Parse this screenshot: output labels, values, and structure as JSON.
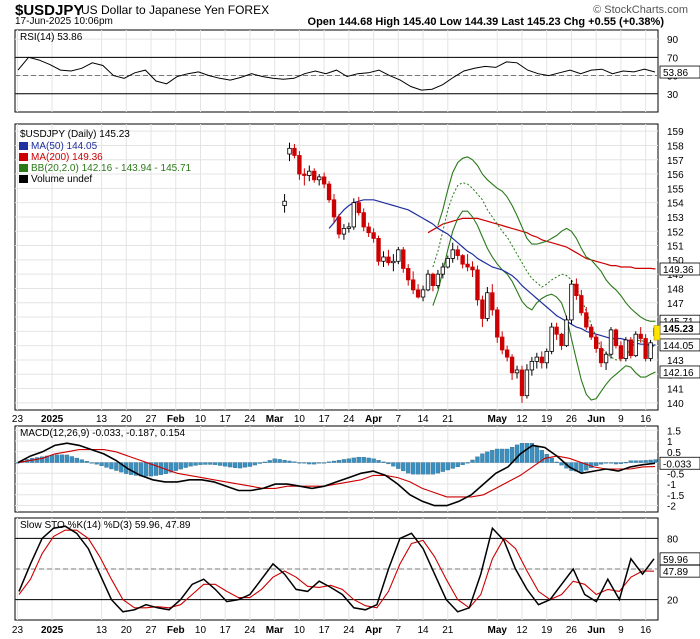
{
  "header": {
    "symbol": "$USDJPY",
    "name": "US Dollar to Japanese Yen FOREX",
    "datetime": "17-Jun-2025 10:06pm",
    "ohlc_text": "Open 144.68  High 145.40  Low 144.39  Last 145.23  Chg +0.55 (+0.38%)",
    "watermark": "© StockCharts.com"
  },
  "colors": {
    "up": "#000000",
    "down": "#cc0000",
    "doji": "#000000",
    "ma50": "#1f2fa0",
    "ma200": "#cc0000",
    "bb": "#2a7a1a",
    "bb_mid": "#2a7a1a",
    "histogram": "#3b8fbf",
    "macd": "#000000",
    "signal": "#cc0000",
    "stoch_k": "#000000",
    "stoch_d": "#cc0000",
    "rsi": "#000000",
    "grid": "#e4e4e4",
    "border": "#000000"
  },
  "chart_data": [
    {
      "type": "line",
      "panel": "rsi",
      "label": "RSI(14) 53.86",
      "ylim": [
        10,
        100
      ],
      "yticks": [
        90,
        70,
        50,
        30
      ],
      "reference_lines": [
        70,
        30
      ],
      "last_value_label": "53.86",
      "x_days": [
        0,
        3,
        6,
        9,
        12,
        15,
        18,
        21,
        24,
        27,
        30,
        33,
        36,
        39,
        42,
        45,
        48,
        51,
        54,
        57,
        60,
        63,
        66,
        69,
        72,
        75,
        78,
        81,
        84,
        87,
        90,
        93,
        96,
        99,
        102,
        105,
        108,
        111,
        114,
        117,
        120,
        123,
        126,
        129,
        132,
        135,
        138,
        141,
        144,
        147,
        150,
        153,
        156,
        159,
        162,
        165,
        168,
        171,
        174,
        177,
        180
      ],
      "values": [
        56,
        70,
        67,
        62,
        56,
        55,
        58,
        64,
        61,
        50,
        47,
        53,
        56,
        44,
        41,
        49,
        52,
        54,
        50,
        47,
        45,
        48,
        52,
        49,
        47,
        46,
        47,
        52,
        55,
        52,
        56,
        49,
        52,
        53,
        56,
        50,
        45,
        38,
        34,
        35,
        40,
        48,
        55,
        58,
        60,
        59,
        65,
        64,
        56,
        52,
        50,
        53,
        56,
        52,
        56,
        57,
        52,
        55,
        54,
        57,
        53.86
      ]
    },
    {
      "type": "candlestick",
      "panel": "price",
      "label": "$USDJPY (Daily) 145.23",
      "legend": [
        {
          "name": "MA(50) 144.05",
          "color_key": "ma50"
        },
        {
          "name": "MA(200) 149.36",
          "color_key": "ma200"
        },
        {
          "name": "BB(20,2.0) 142.16 - 143.94 - 145.71",
          "color_key": "bb"
        },
        {
          "name": "Volume undef",
          "color_key": "up"
        }
      ],
      "ylim": [
        139.5,
        159.5
      ],
      "yticks": [
        159,
        158,
        157,
        156,
        155,
        154,
        153,
        152,
        151,
        150,
        149,
        148,
        147,
        146,
        145,
        144,
        143,
        142,
        141,
        140
      ],
      "hidden_ytick_labels": [
        145,
        146
      ],
      "last_value_tags": [
        {
          "text": "149.36",
          "value": 149.36,
          "bold": false
        },
        {
          "text": "145.71",
          "value": 145.71,
          "bold": false
        },
        {
          "text": "145.23",
          "value": 145.23,
          "bold": true
        },
        {
          "text": "144.05",
          "value": 144.05,
          "bold": false
        },
        {
          "text": "142.16",
          "value": 142.16,
          "bold": false
        }
      ],
      "x_label_days": [
        0,
        3,
        6,
        11,
        14,
        17,
        20,
        25,
        28,
        31,
        34,
        39,
        42,
        45,
        48,
        53,
        56,
        59,
        62,
        67,
        70,
        73,
        76,
        81,
        84,
        87,
        90,
        95,
        98,
        101,
        104,
        109,
        112,
        115,
        118,
        121
      ],
      "x_labels": [
        "23",
        "2025",
        "13",
        "20",
        "27",
        "Feb",
        "10",
        "17",
        "24",
        "Mar",
        "10",
        "17",
        "24",
        "Apr",
        "7",
        "14",
        "21",
        "May",
        "12",
        "19",
        "26",
        "Jun",
        "9",
        "16"
      ],
      "x_label_positions": [
        0,
        7,
        17,
        22,
        27,
        32,
        37,
        42,
        47,
        52,
        57,
        62,
        67,
        72,
        77,
        82,
        87,
        97,
        102,
        107,
        112,
        117,
        122,
        127
      ],
      "candles": [
        [
          153.8,
          154.6,
          153.3,
          154.1
        ],
        [
          157.4,
          158.2,
          156.9,
          157.8
        ],
        [
          157.8,
          158.1,
          157.1,
          157.3
        ],
        [
          157.3,
          157.6,
          155.6,
          156.0
        ],
        [
          156.0,
          156.4,
          155.2,
          155.9
        ],
        [
          155.9,
          156.6,
          155.5,
          156.2
        ],
        [
          156.2,
          156.4,
          155.4,
          155.6
        ],
        [
          155.6,
          156.0,
          155.2,
          155.8
        ],
        [
          155.8,
          156.1,
          155.0,
          155.3
        ],
        [
          155.3,
          155.5,
          154.0,
          154.2
        ],
        [
          154.2,
          154.6,
          152.6,
          153.0
        ],
        [
          153.0,
          153.2,
          151.5,
          151.8
        ],
        [
          151.8,
          152.5,
          151.4,
          152.2
        ],
        [
          152.2,
          152.6,
          151.9,
          152.3
        ],
        [
          152.3,
          154.3,
          152.1,
          154.0
        ],
        [
          154.0,
          154.4,
          153.1,
          153.3
        ],
        [
          153.3,
          153.6,
          152.0,
          152.3
        ],
        [
          152.3,
          152.6,
          151.6,
          151.9
        ],
        [
          151.9,
          152.2,
          151.2,
          151.5
        ],
        [
          151.5,
          151.7,
          149.6,
          149.9
        ],
        [
          149.9,
          150.6,
          149.5,
          150.2
        ],
        [
          150.2,
          150.7,
          149.6,
          149.8
        ],
        [
          149.8,
          150.4,
          149.2,
          149.9
        ],
        [
          149.9,
          150.9,
          149.7,
          150.7
        ],
        [
          150.7,
          150.9,
          149.1,
          149.4
        ],
        [
          149.4,
          149.7,
          148.2,
          148.6
        ],
        [
          148.6,
          149.2,
          147.6,
          147.9
        ],
        [
          147.9,
          148.3,
          147.3,
          147.4
        ],
        [
          147.4,
          148.2,
          147.1,
          147.9
        ],
        [
          147.9,
          149.3,
          147.8,
          149.0
        ],
        [
          149.0,
          149.1,
          147.8,
          148.2
        ],
        [
          148.2,
          149.3,
          148.0,
          149.0
        ],
        [
          149.0,
          149.8,
          148.7,
          149.5
        ],
        [
          149.5,
          150.3,
          149.4,
          150.1
        ],
        [
          150.1,
          151.2,
          149.8,
          150.7
        ],
        [
          150.7,
          151.0,
          150.0,
          150.3
        ],
        [
          150.3,
          150.4,
          149.4,
          149.7
        ],
        [
          149.7,
          150.4,
          149.2,
          149.5
        ],
        [
          149.5,
          149.9,
          148.8,
          149.3
        ],
        [
          149.3,
          149.6,
          146.8,
          147.2
        ],
        [
          147.2,
          147.5,
          145.3,
          145.9
        ],
        [
          145.9,
          148.1,
          145.7,
          147.7
        ],
        [
          147.7,
          148.3,
          146.1,
          146.5
        ],
        [
          146.5,
          146.7,
          144.2,
          144.6
        ],
        [
          144.6,
          145.0,
          143.4,
          143.7
        ],
        [
          143.7,
          144.0,
          142.9,
          143.2
        ],
        [
          143.2,
          143.4,
          141.6,
          142.1
        ],
        [
          142.1,
          142.6,
          141.7,
          142.3
        ],
        [
          142.3,
          142.6,
          140.0,
          140.5
        ],
        [
          140.5,
          142.7,
          140.3,
          142.3
        ],
        [
          142.3,
          143.2,
          141.9,
          142.9
        ],
        [
          142.9,
          143.5,
          142.4,
          143.2
        ],
        [
          143.2,
          143.6,
          142.4,
          142.8
        ],
        [
          142.8,
          143.8,
          142.4,
          143.6
        ],
        [
          143.6,
          145.6,
          143.4,
          145.3
        ],
        [
          145.3,
          145.6,
          144.4,
          144.8
        ],
        [
          144.8,
          144.9,
          143.7,
          144.0
        ],
        [
          144.0,
          146.1,
          143.9,
          145.8
        ],
        [
          145.8,
          148.6,
          145.5,
          148.3
        ],
        [
          148.3,
          148.7,
          147.2,
          147.5
        ],
        [
          147.5,
          147.9,
          146.1,
          146.3
        ],
        [
          146.3,
          146.7,
          145.1,
          145.3
        ],
        [
          145.3,
          145.5,
          144.4,
          144.6
        ],
        [
          144.6,
          144.8,
          143.5,
          143.8
        ],
        [
          143.8,
          144.3,
          142.5,
          142.8
        ],
        [
          142.8,
          143.6,
          142.3,
          143.4
        ],
        [
          143.4,
          145.3,
          143.1,
          145.1
        ],
        [
          145.1,
          145.2,
          143.8,
          144.0
        ],
        [
          144.0,
          144.3,
          142.9,
          143.1
        ],
        [
          143.1,
          144.6,
          142.9,
          144.4
        ],
        [
          144.4,
          144.6,
          143.1,
          143.3
        ],
        [
          143.3,
          145.0,
          143.2,
          144.8
        ],
        [
          144.8,
          145.3,
          144.2,
          144.5
        ],
        [
          144.5,
          144.8,
          142.9,
          143.1
        ],
        [
          143.1,
          144.4,
          142.9,
          144.2
        ],
        [
          144.7,
          145.4,
          144.4,
          145.23
        ]
      ],
      "ma50": [
        152.2,
        152.6,
        153.1,
        153.5,
        153.8,
        154.0,
        154.1,
        154.2,
        154.2,
        154.2,
        154.1,
        154.0,
        153.9,
        153.8,
        153.7,
        153.6,
        153.5,
        153.3,
        153.1,
        152.9,
        152.7,
        152.5,
        152.2,
        152.0,
        151.8,
        151.5,
        151.2,
        150.9,
        150.6,
        150.4,
        150.1,
        149.9,
        149.7,
        149.5,
        149.4,
        149.3,
        149.1,
        148.9,
        148.6,
        148.2,
        147.9,
        147.6,
        147.3,
        147.0,
        146.7,
        146.4,
        146.1,
        145.9,
        145.7,
        145.5,
        145.3,
        145.2,
        145.0,
        144.9,
        144.8,
        144.7,
        144.6,
        144.5,
        144.5,
        144.5,
        144.4,
        144.3,
        144.2,
        144.1,
        144.1,
        144.0,
        144.05
      ],
      "ma200": [
        151.9,
        152.1,
        152.3,
        152.5,
        152.6,
        152.7,
        152.8,
        152.9,
        152.9,
        152.9,
        152.9,
        152.8,
        152.7,
        152.6,
        152.5,
        152.4,
        152.3,
        152.2,
        152.1,
        152.0,
        151.9,
        151.7,
        151.6,
        151.4,
        151.3,
        151.2,
        151.1,
        151.0,
        150.9,
        150.7,
        150.5,
        150.3,
        150.1,
        150.0,
        149.9,
        149.8,
        149.7,
        149.6,
        149.6,
        149.5,
        149.5,
        149.5,
        149.4,
        149.4,
        149.4,
        149.4,
        149.36
      ],
      "bb_upper": [
        152.4,
        153.5,
        154.9,
        156.1,
        156.8,
        157.1,
        157.2,
        157.0,
        156.6,
        156.0,
        155.6,
        155.3,
        155.0,
        154.8,
        154.4,
        153.8,
        153.1,
        152.3,
        151.5,
        151.1,
        151.1,
        151.2,
        151.3,
        151.5,
        151.7,
        152.0,
        152.2,
        152.0,
        151.5,
        150.8,
        150.2,
        150.0,
        149.6,
        149.2,
        148.6,
        148.2,
        147.9,
        147.5,
        147.0,
        146.6,
        146.3,
        146.0,
        145.8,
        145.7,
        145.71
      ],
      "bb_lower": [
        146.8,
        147.8,
        149.2,
        150.7,
        152.0,
        152.9,
        153.4,
        153.4,
        153.0,
        152.4,
        151.6,
        150.8,
        150.2,
        149.7,
        149.3,
        149.0,
        148.5,
        147.8,
        147.1,
        146.7,
        146.5,
        147.0,
        147.3,
        147.5,
        147.6,
        147.4,
        147.0,
        146.0,
        144.5,
        143.0,
        141.6,
        140.6,
        140.2,
        140.3,
        140.8,
        141.3,
        141.7,
        142.0,
        142.3,
        142.6,
        142.5,
        142.1,
        141.8,
        141.8,
        142.0,
        142.16
      ],
      "bb_mid": [
        149.5,
        150.6,
        152.0,
        153.5,
        154.5,
        155.2,
        155.4,
        155.3,
        155.0,
        154.6,
        154.2,
        153.5,
        153.0,
        152.5,
        152.0,
        151.6,
        151.0,
        150.4,
        149.8,
        149.2,
        148.7,
        148.4,
        148.1,
        148.3,
        148.6,
        148.8,
        149.0,
        148.9,
        148.6,
        148.0,
        147.3,
        146.4,
        145.5,
        144.6,
        143.9,
        143.5,
        143.2,
        143.0,
        143.0,
        143.3,
        143.8,
        144.3,
        144.4,
        144.2,
        144.0,
        143.94
      ]
    },
    {
      "type": "bar",
      "panel": "macd",
      "label": "MACD(12,26,9) -0.033, -0.187, 0.154",
      "ylim": [
        -2.3,
        1.7
      ],
      "yticks": [
        1.5,
        1.0,
        0.5,
        0.0,
        -0.5,
        -1.0,
        -1.5,
        -2.0
      ],
      "last_value_label": "-0.033",
      "macd": [
        0.0,
        0.3,
        0.5,
        0.8,
        0.9,
        0.8,
        0.6,
        0.4,
        0.1,
        -0.3,
        -0.6,
        -0.8,
        -0.9,
        -0.9,
        -0.8,
        -0.8,
        -0.9,
        -1.1,
        -1.3,
        -1.3,
        -1.2,
        -1.0,
        -1.0,
        -1.1,
        -1.2,
        -1.1,
        -0.9,
        -0.7,
        -0.5,
        -0.4,
        -0.6,
        -1.0,
        -1.5,
        -1.8,
        -2.0,
        -2.0,
        -1.8,
        -1.5,
        -1.0,
        -0.5,
        -0.2,
        0.4,
        0.8,
        0.7,
        0.3,
        -0.2,
        -0.5,
        -0.4,
        -0.3,
        -0.4,
        -0.2,
        -0.1,
        -0.033
      ],
      "signal": [
        0.0,
        0.1,
        0.2,
        0.4,
        0.5,
        0.6,
        0.6,
        0.6,
        0.5,
        0.3,
        0.1,
        -0.1,
        -0.3,
        -0.5,
        -0.6,
        -0.7,
        -0.8,
        -0.9,
        -1.0,
        -1.1,
        -1.2,
        -1.2,
        -1.1,
        -1.1,
        -1.1,
        -1.1,
        -1.0,
        -0.9,
        -0.8,
        -0.6,
        -0.6,
        -0.7,
        -0.9,
        -1.2,
        -1.4,
        -1.6,
        -1.6,
        -1.6,
        -1.5,
        -1.2,
        -0.9,
        -0.6,
        -0.2,
        0.2,
        0.3,
        0.2,
        0.0,
        -0.2,
        -0.3,
        -0.3,
        -0.3,
        -0.2,
        -0.187
      ]
    },
    {
      "type": "line",
      "panel": "stochastic",
      "label": "Slow STO %K(14) %D(3) 59.96, 47.89",
      "ylim": [
        0,
        100
      ],
      "yticks": [
        80,
        50,
        20
      ],
      "reference_lines": [
        80,
        20
      ],
      "last_value_labels": [
        "59.96",
        "47.89"
      ],
      "k": [
        28,
        55,
        80,
        90,
        92,
        85,
        70,
        45,
        20,
        8,
        10,
        15,
        12,
        10,
        20,
        35,
        40,
        30,
        18,
        20,
        25,
        40,
        55,
        45,
        30,
        28,
        38,
        32,
        25,
        12,
        10,
        15,
        50,
        80,
        85,
        70,
        45,
        20,
        8,
        12,
        45,
        90,
        78,
        50,
        30,
        15,
        20,
        35,
        50,
        25,
        18,
        40,
        20,
        60,
        45,
        59.96
      ],
      "d": [
        25,
        40,
        65,
        82,
        88,
        88,
        80,
        62,
        40,
        20,
        12,
        12,
        13,
        12,
        15,
        25,
        35,
        35,
        28,
        22,
        22,
        30,
        42,
        48,
        42,
        33,
        32,
        34,
        30,
        20,
        14,
        12,
        28,
        55,
        75,
        78,
        62,
        40,
        20,
        12,
        25,
        60,
        80,
        70,
        48,
        28,
        20,
        25,
        38,
        35,
        25,
        30,
        28,
        42,
        48,
        47.89
      ]
    }
  ]
}
